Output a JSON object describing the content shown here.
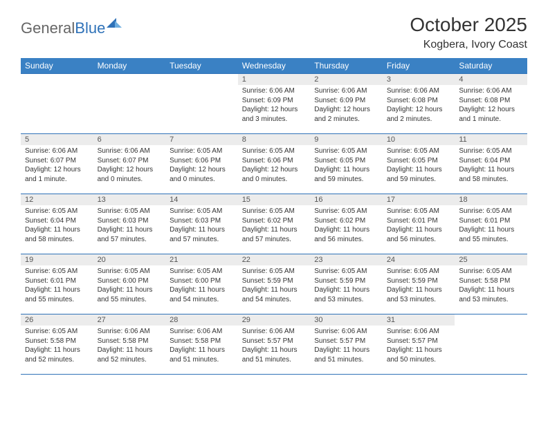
{
  "brand": {
    "part1": "General",
    "part2": "Blue"
  },
  "title": {
    "month": "October 2025",
    "location": "Kogbera, Ivory Coast"
  },
  "colors": {
    "header": "#3a81c4",
    "rule": "#2f72b8",
    "daynumbg": "#ececec"
  },
  "weekdays": [
    "Sunday",
    "Monday",
    "Tuesday",
    "Wednesday",
    "Thursday",
    "Friday",
    "Saturday"
  ],
  "weeks": [
    [
      null,
      null,
      null,
      {
        "n": "1",
        "sr": "6:06 AM",
        "ss": "6:09 PM",
        "dl": "12 hours and 3 minutes."
      },
      {
        "n": "2",
        "sr": "6:06 AM",
        "ss": "6:09 PM",
        "dl": "12 hours and 2 minutes."
      },
      {
        "n": "3",
        "sr": "6:06 AM",
        "ss": "6:08 PM",
        "dl": "12 hours and 2 minutes."
      },
      {
        "n": "4",
        "sr": "6:06 AM",
        "ss": "6:08 PM",
        "dl": "12 hours and 1 minute."
      }
    ],
    [
      {
        "n": "5",
        "sr": "6:06 AM",
        "ss": "6:07 PM",
        "dl": "12 hours and 1 minute."
      },
      {
        "n": "6",
        "sr": "6:06 AM",
        "ss": "6:07 PM",
        "dl": "12 hours and 0 minutes."
      },
      {
        "n": "7",
        "sr": "6:05 AM",
        "ss": "6:06 PM",
        "dl": "12 hours and 0 minutes."
      },
      {
        "n": "8",
        "sr": "6:05 AM",
        "ss": "6:06 PM",
        "dl": "12 hours and 0 minutes."
      },
      {
        "n": "9",
        "sr": "6:05 AM",
        "ss": "6:05 PM",
        "dl": "11 hours and 59 minutes."
      },
      {
        "n": "10",
        "sr": "6:05 AM",
        "ss": "6:05 PM",
        "dl": "11 hours and 59 minutes."
      },
      {
        "n": "11",
        "sr": "6:05 AM",
        "ss": "6:04 PM",
        "dl": "11 hours and 58 minutes."
      }
    ],
    [
      {
        "n": "12",
        "sr": "6:05 AM",
        "ss": "6:04 PM",
        "dl": "11 hours and 58 minutes."
      },
      {
        "n": "13",
        "sr": "6:05 AM",
        "ss": "6:03 PM",
        "dl": "11 hours and 57 minutes."
      },
      {
        "n": "14",
        "sr": "6:05 AM",
        "ss": "6:03 PM",
        "dl": "11 hours and 57 minutes."
      },
      {
        "n": "15",
        "sr": "6:05 AM",
        "ss": "6:02 PM",
        "dl": "11 hours and 57 minutes."
      },
      {
        "n": "16",
        "sr": "6:05 AM",
        "ss": "6:02 PM",
        "dl": "11 hours and 56 minutes."
      },
      {
        "n": "17",
        "sr": "6:05 AM",
        "ss": "6:01 PM",
        "dl": "11 hours and 56 minutes."
      },
      {
        "n": "18",
        "sr": "6:05 AM",
        "ss": "6:01 PM",
        "dl": "11 hours and 55 minutes."
      }
    ],
    [
      {
        "n": "19",
        "sr": "6:05 AM",
        "ss": "6:01 PM",
        "dl": "11 hours and 55 minutes."
      },
      {
        "n": "20",
        "sr": "6:05 AM",
        "ss": "6:00 PM",
        "dl": "11 hours and 55 minutes."
      },
      {
        "n": "21",
        "sr": "6:05 AM",
        "ss": "6:00 PM",
        "dl": "11 hours and 54 minutes."
      },
      {
        "n": "22",
        "sr": "6:05 AM",
        "ss": "5:59 PM",
        "dl": "11 hours and 54 minutes."
      },
      {
        "n": "23",
        "sr": "6:05 AM",
        "ss": "5:59 PM",
        "dl": "11 hours and 53 minutes."
      },
      {
        "n": "24",
        "sr": "6:05 AM",
        "ss": "5:59 PM",
        "dl": "11 hours and 53 minutes."
      },
      {
        "n": "25",
        "sr": "6:05 AM",
        "ss": "5:58 PM",
        "dl": "11 hours and 53 minutes."
      }
    ],
    [
      {
        "n": "26",
        "sr": "6:05 AM",
        "ss": "5:58 PM",
        "dl": "11 hours and 52 minutes."
      },
      {
        "n": "27",
        "sr": "6:06 AM",
        "ss": "5:58 PM",
        "dl": "11 hours and 52 minutes."
      },
      {
        "n": "28",
        "sr": "6:06 AM",
        "ss": "5:58 PM",
        "dl": "11 hours and 51 minutes."
      },
      {
        "n": "29",
        "sr": "6:06 AM",
        "ss": "5:57 PM",
        "dl": "11 hours and 51 minutes."
      },
      {
        "n": "30",
        "sr": "6:06 AM",
        "ss": "5:57 PM",
        "dl": "11 hours and 51 minutes."
      },
      {
        "n": "31",
        "sr": "6:06 AM",
        "ss": "5:57 PM",
        "dl": "11 hours and 50 minutes."
      },
      null
    ]
  ],
  "labels": {
    "sunrise": "Sunrise:",
    "sunset": "Sunset:",
    "daylight": "Daylight:"
  }
}
